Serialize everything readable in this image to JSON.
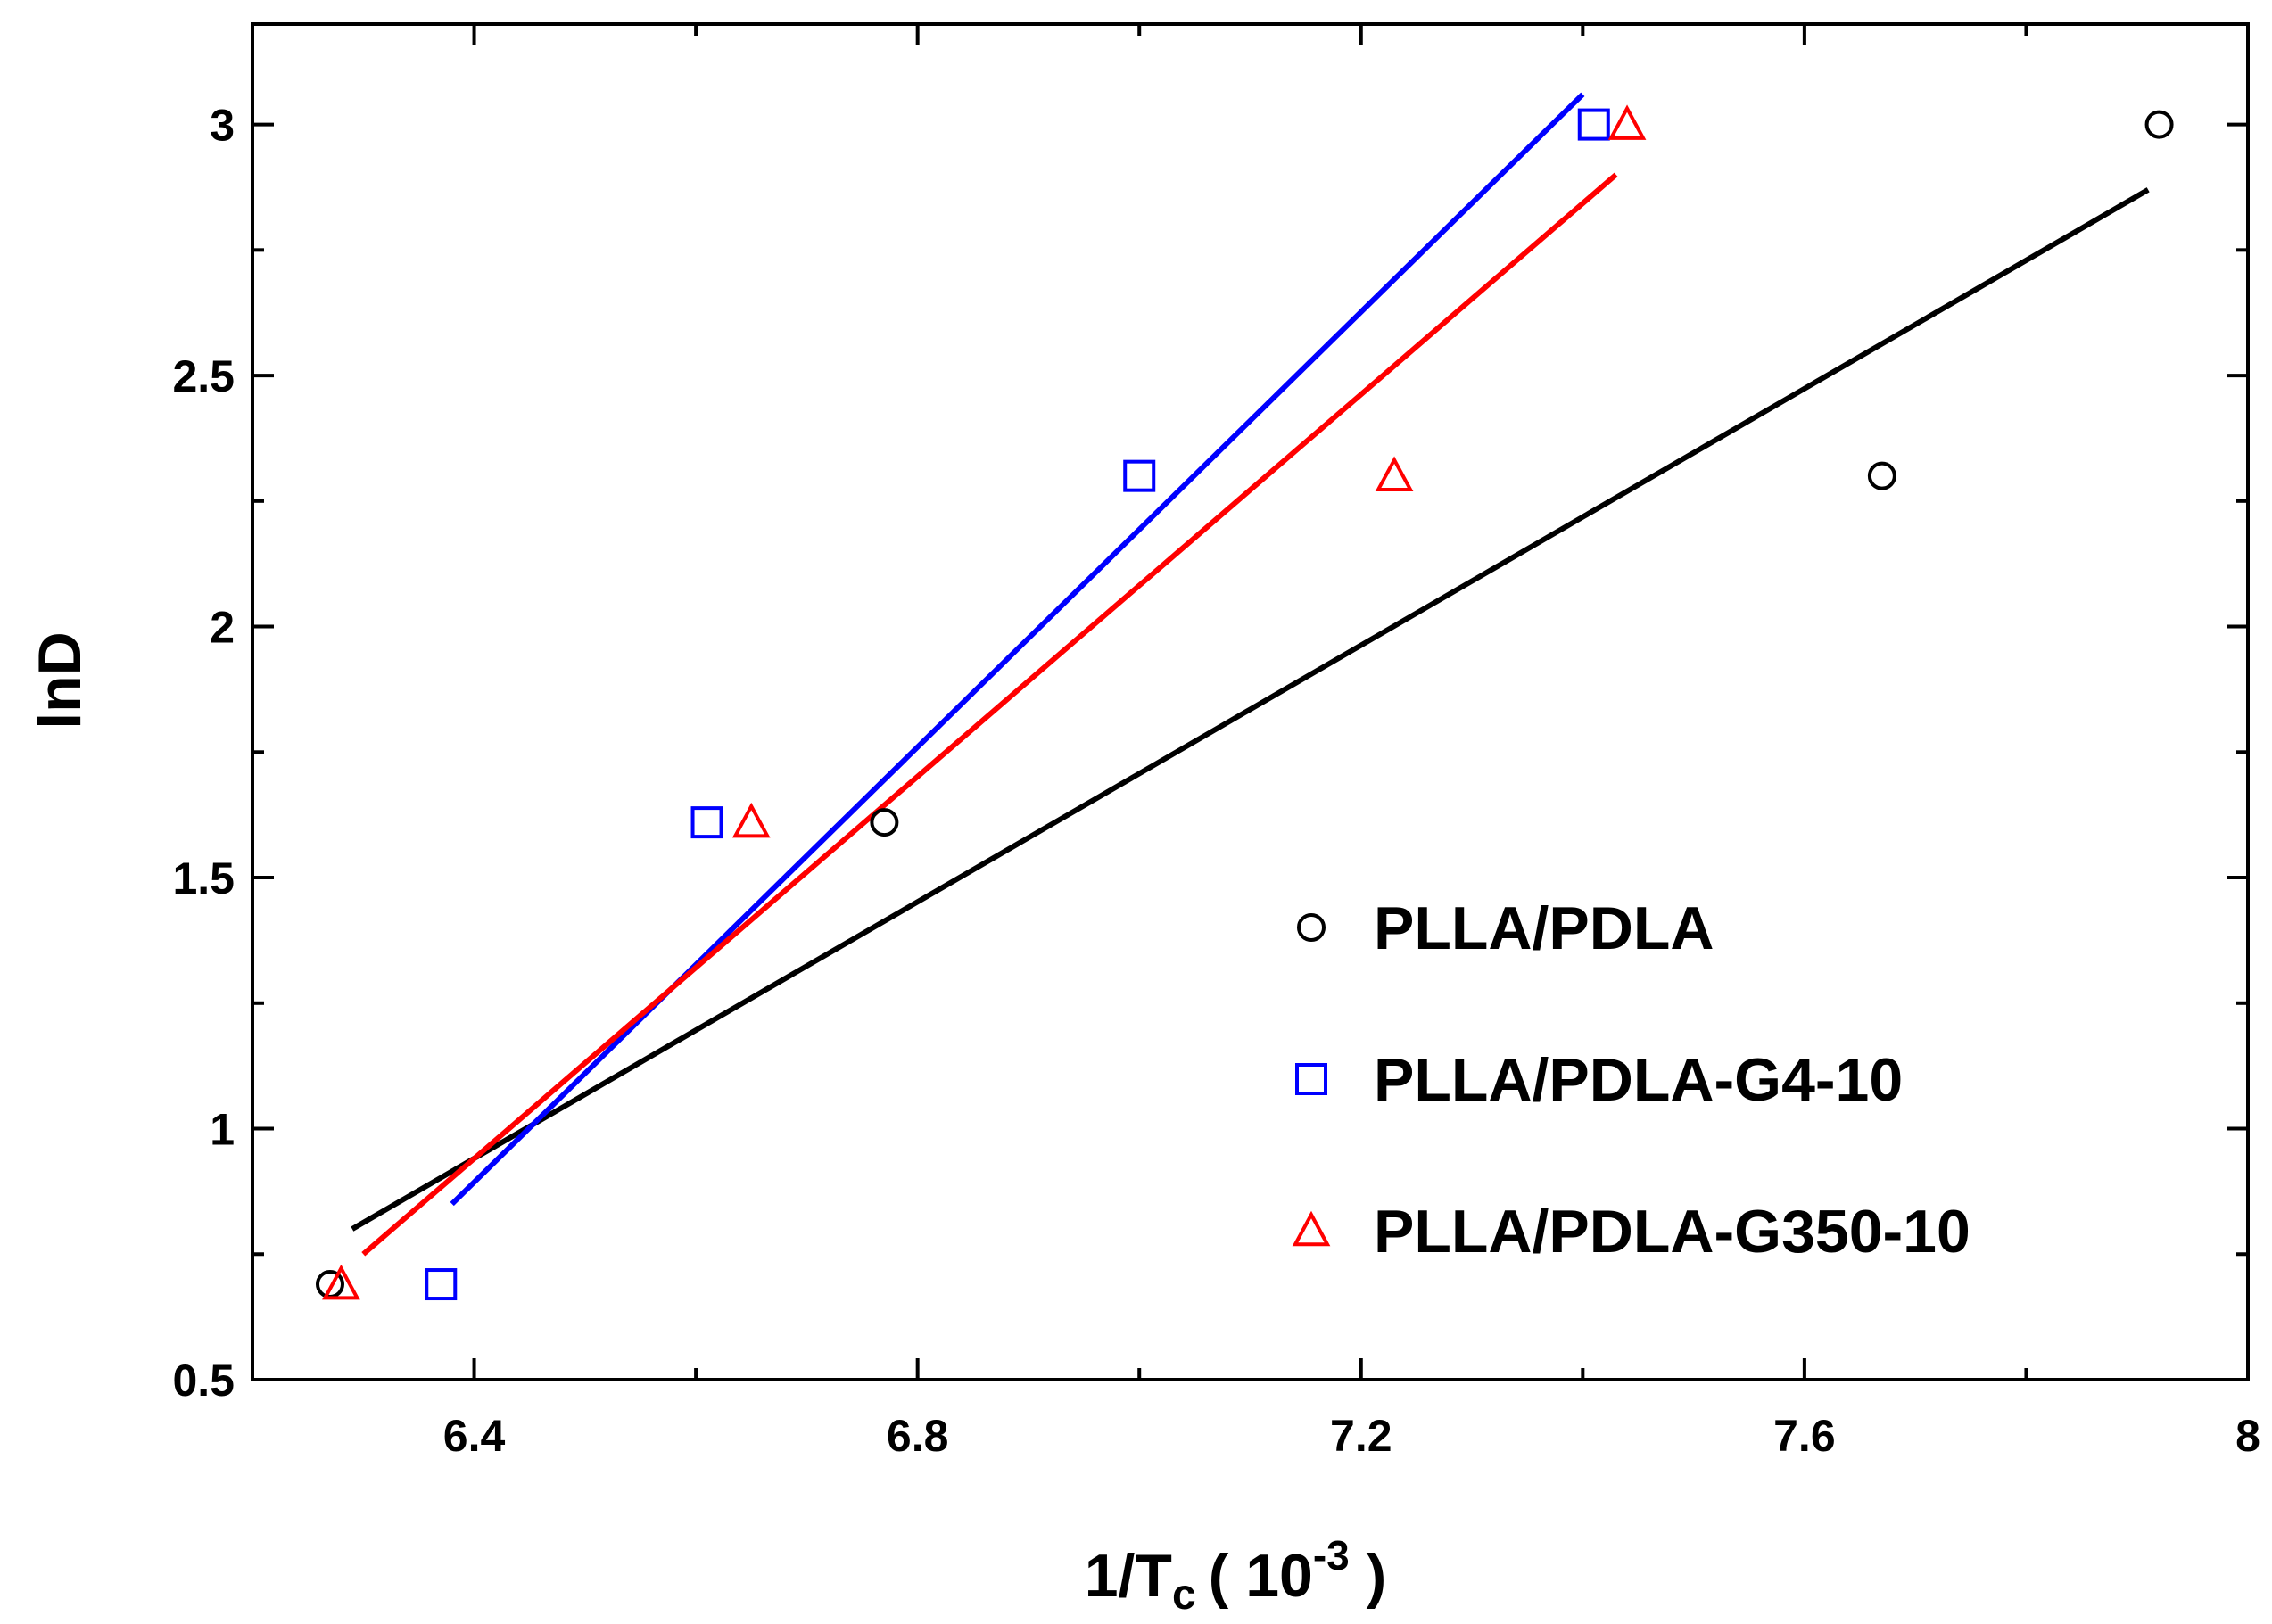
{
  "chart_data": {
    "type": "scatter",
    "title": "",
    "xlabel": {
      "main": "1/T",
      "subscript": "c",
      "unit_prefix": "( 10",
      "exponent": "-3",
      "unit_suffix": " )"
    },
    "ylabel": "lnD",
    "xlim": [
      6.2,
      8.0
    ],
    "ylim": [
      0.5,
      3.2
    ],
    "x_ticks": [
      6.4,
      6.8,
      7.2,
      7.6,
      8.0
    ],
    "x_tick_labels": [
      "6.4",
      "6.8",
      "7.2",
      "7.6",
      "8"
    ],
    "x_minor_ticks": [
      6.6,
      7.0,
      7.4,
      7.8
    ],
    "y_ticks": [
      0.5,
      1.0,
      1.5,
      2.0,
      2.5,
      3.0
    ],
    "y_tick_labels": [
      "0.5",
      "1",
      "1.5",
      "2",
      "2.5",
      "3"
    ],
    "y_minor_ticks": [
      0.75,
      1.25,
      1.75,
      2.25,
      2.75
    ],
    "grid": false,
    "legend_position": "center-right",
    "series": [
      {
        "name": "PLLA/PDLA",
        "marker": "circle",
        "color": "#000000",
        "x": [
          6.27,
          6.77,
          7.67,
          7.92
        ],
        "y": [
          0.69,
          1.61,
          2.3,
          3.0
        ],
        "fit": {
          "x": [
            6.29,
            7.91
          ],
          "y": [
            0.8,
            2.87
          ]
        }
      },
      {
        "name": "PLLA/PDLA-G4-10",
        "marker": "square",
        "color": "#0000ff",
        "x": [
          6.37,
          6.61,
          7.0,
          7.41
        ],
        "y": [
          0.69,
          1.61,
          2.3,
          3.0
        ],
        "fit": {
          "x": [
            6.38,
            7.4
          ],
          "y": [
            0.85,
            3.06
          ]
        }
      },
      {
        "name": "PLLA/PDLA-G350-10",
        "marker": "triangle",
        "color": "#ff0000",
        "x": [
          6.28,
          6.65,
          7.23,
          7.44
        ],
        "y": [
          0.69,
          1.61,
          2.3,
          3.0
        ],
        "fit": {
          "x": [
            6.3,
            7.43
          ],
          "y": [
            0.75,
            2.9
          ]
        }
      }
    ]
  }
}
